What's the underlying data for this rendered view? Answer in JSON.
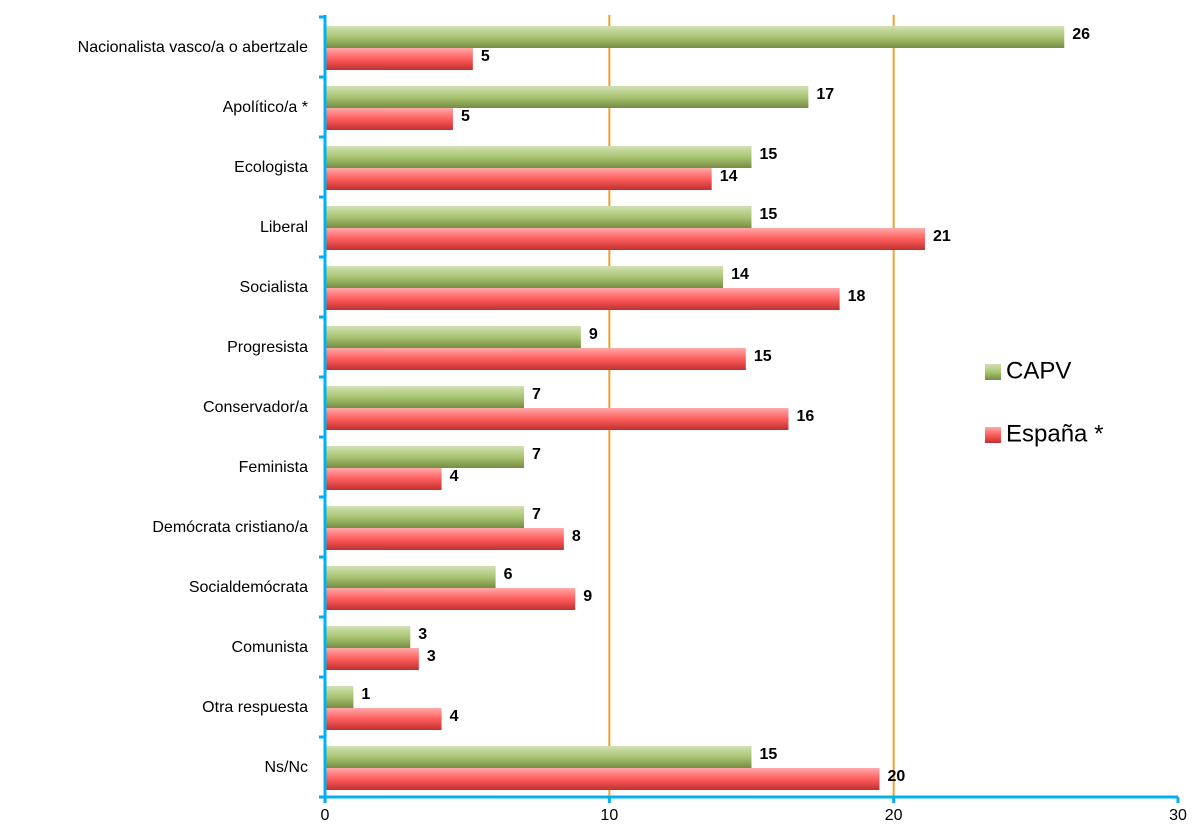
{
  "chart_data": {
    "type": "bar",
    "orientation": "horizontal",
    "categories": [
      "Nacionalista vasco/a o abertzale",
      "Apolítico/a *",
      "Ecologista",
      "Liberal",
      "Socialista",
      "Progresista",
      "Conservador/a",
      "Feminista",
      "Demócrata cristiano/a",
      "Socialdemócrata",
      "Comunista",
      "Otra respuesta",
      "Ns/Nc"
    ],
    "series": [
      {
        "name": "CAPV",
        "color": "#9bbb59",
        "values": [
          26,
          17,
          15,
          15,
          14,
          9,
          7,
          7,
          7,
          6,
          3,
          1,
          15
        ]
      },
      {
        "name": "España *",
        "color": "#ff4040",
        "values": [
          5.2,
          4.5,
          13.6,
          21.1,
          18.1,
          14.8,
          16.3,
          4.1,
          8.4,
          8.8,
          3.3,
          4.1,
          19.5
        ],
        "value_labels": [
          "5",
          "5",
          "14",
          "21",
          "18",
          "15",
          "16",
          "4",
          "8",
          "9",
          "3",
          "4",
          "20"
        ]
      }
    ],
    "xlim": [
      0,
      30
    ],
    "xticks": [
      0,
      10,
      20,
      30
    ],
    "grid": true,
    "legend": "right"
  }
}
